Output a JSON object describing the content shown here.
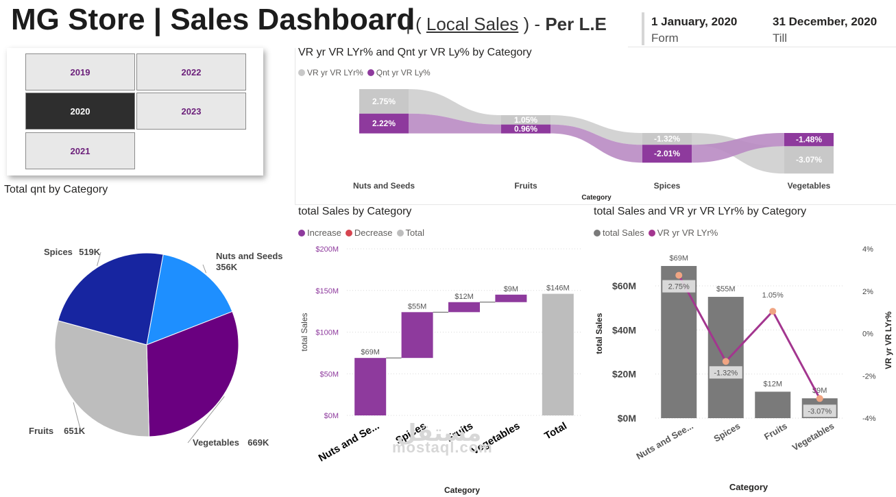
{
  "header": {
    "title": "MG Store | Sales Dashboard",
    "sub_open": "| (",
    "sub_link": "Local Sales",
    "sub_close": ") -",
    "sub_bold": "Per L.E",
    "date_from": "1 January, 2020",
    "date_from_label": "Form",
    "date_to": "31 December, 2020",
    "date_to_label": "Till"
  },
  "year_slicer": {
    "years": [
      "2019",
      "2022",
      "2020",
      "2023",
      "2021"
    ],
    "selected": "2020"
  },
  "colors": {
    "purple": "#8e3a9d",
    "dark_purple": "#6a0080",
    "gray": "#c8c8c8",
    "dark_gray": "#7a7a7a",
    "navy": "#1725a0",
    "blue": "#1e8fff",
    "decrease": "#d64550",
    "line": "#a3368f",
    "marker": "#f0a583"
  },
  "chart_data": [
    {
      "id": "ribbon",
      "type": "ribbon",
      "title": "VR yr VR LYr% and Qnt yr VR Ly% by Category",
      "legend": [
        "VR yr VR LYr%",
        "Qnt yr VR Ly%"
      ],
      "xlabel": "Category",
      "categories": [
        "Nuts and Seeds",
        "Fruits",
        "Spices",
        "Vegetables"
      ],
      "series": [
        {
          "name": "VR yr VR LYr%",
          "values": [
            2.75,
            1.05,
            -1.32,
            -3.07
          ],
          "labels": [
            "2.75%",
            "1.05%",
            "-1.32%",
            "-3.07%"
          ]
        },
        {
          "name": "Qnt yr VR Ly%",
          "values": [
            2.22,
            0.96,
            -2.01,
            -1.48
          ],
          "labels": [
            "2.22%",
            "0.96%",
            "-2.01%",
            "-1.48%"
          ]
        }
      ]
    },
    {
      "id": "pie",
      "type": "pie",
      "title": "Total qnt by Category",
      "slices": [
        {
          "name": "Nuts and Seeds",
          "value": 356,
          "label_name": "Nuts and Seeds",
          "label_value": "356K"
        },
        {
          "name": "Vegetables",
          "value": 669,
          "label_name": "Vegetables",
          "label_value": "669K"
        },
        {
          "name": "Fruits",
          "value": 651,
          "label_name": "Fruits",
          "label_value": "651K"
        },
        {
          "name": "Spices",
          "value": 519,
          "label_name": "Spices",
          "label_value": "519K"
        }
      ]
    },
    {
      "id": "waterfall",
      "type": "waterfall",
      "title": "total Sales by Category",
      "legend": [
        "Increase",
        "Decrease",
        "Total"
      ],
      "xlabel": "Category",
      "ylabel": "total Sales",
      "categories": [
        "Nuts and Se...",
        "Spices",
        "Fruits",
        "Vegetables",
        "Total"
      ],
      "values": [
        69,
        55,
        12,
        9,
        146
      ],
      "labels": [
        "$69M",
        "$55M",
        "$12M",
        "$9M",
        "$146M"
      ],
      "y_ticks": [
        0,
        50,
        100,
        150,
        200
      ],
      "y_tick_labels": [
        "$0M",
        "$50M",
        "$100M",
        "$150M",
        "$200M"
      ],
      "ylim": [
        0,
        200
      ]
    },
    {
      "id": "combo",
      "type": "bar+line",
      "title": "total Sales and VR yr VR LYr% by Category",
      "legend": [
        "total Sales",
        "VR yr VR LYr%"
      ],
      "xlabel": "Category",
      "ylabel": "total Sales",
      "y2label": "VR yr VR LYr%",
      "categories": [
        "Nuts and See...",
        "Spices",
        "Fruits",
        "Vegetables"
      ],
      "bar_values": [
        69,
        55,
        12,
        9
      ],
      "bar_labels": [
        "$69M",
        "$55M",
        "$12M",
        "$9M"
      ],
      "line_values": [
        2.75,
        -1.32,
        1.05,
        -3.07
      ],
      "line_labels": [
        "2.75%",
        "-1.32%",
        "1.05%",
        "-3.07%"
      ],
      "y_ticks": [
        0,
        20,
        40,
        60
      ],
      "y_tick_labels": [
        "$0M",
        "$20M",
        "$40M",
        "$60M"
      ],
      "ylim": [
        0,
        69
      ],
      "y2_ticks": [
        -4,
        -2,
        0,
        2,
        4
      ],
      "y2_tick_labels": [
        "-4%",
        "-2%",
        "0%",
        "2%",
        "4%"
      ],
      "y2lim": [
        -4,
        4
      ]
    }
  ],
  "watermark": {
    "arabic": "مستقل",
    "latin": "mostaql.com"
  }
}
